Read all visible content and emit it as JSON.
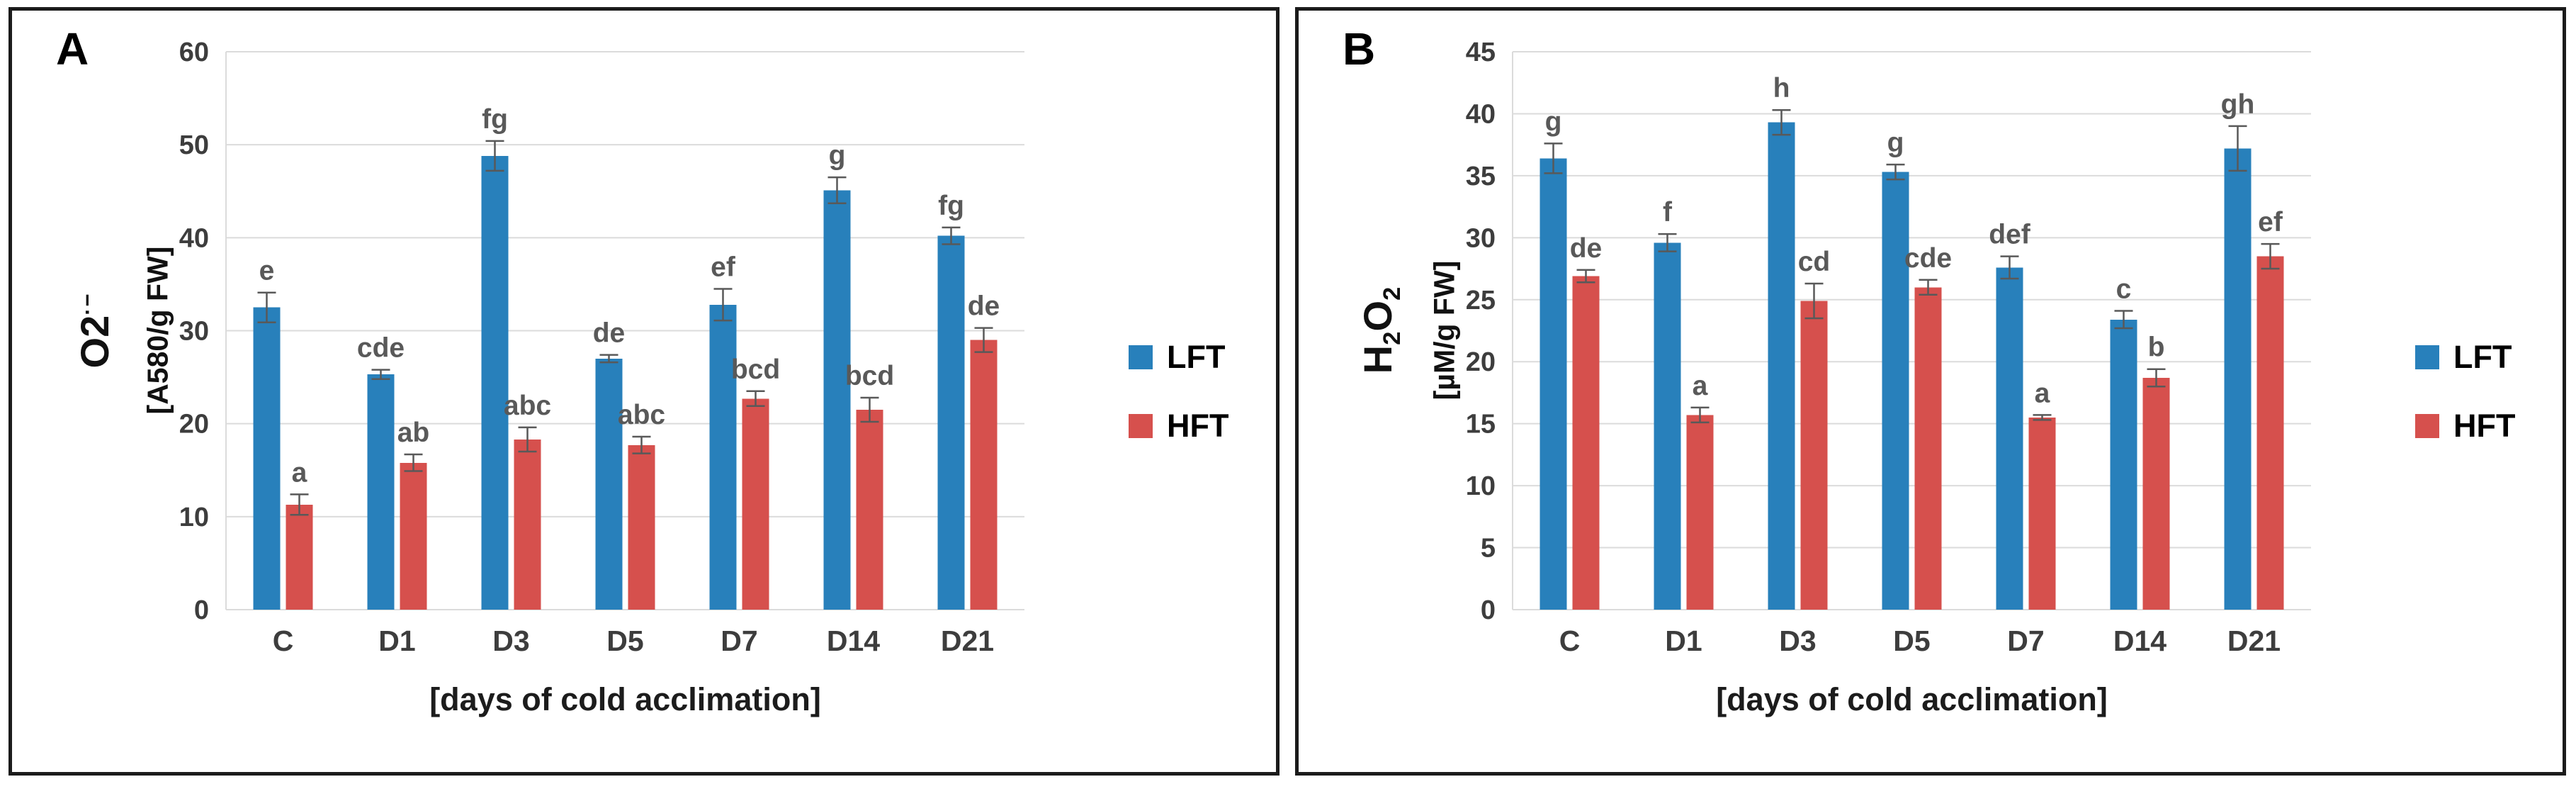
{
  "chart_data": [
    {
      "panel": "A",
      "type": "bar",
      "y_base": "O2",
      "y_sup": "·−",
      "y_unit": "[A580/g FW]",
      "xlabel": "[days of cold acclimation]",
      "categories": [
        "C",
        "D1",
        "D3",
        "D5",
        "D7",
        "D14",
        "D21"
      ],
      "ylim": [
        0,
        60
      ],
      "yticks": [
        0,
        10,
        20,
        30,
        40,
        50,
        60
      ],
      "grid": "on",
      "legend_position": "right",
      "series": [
        {
          "name": "LFT",
          "color": "#2880BB",
          "values": [
            32.5,
            25.3,
            48.8,
            27.0,
            32.8,
            45.1,
            40.2
          ],
          "errors": [
            1.6,
            0.5,
            1.6,
            0.4,
            1.7,
            1.4,
            0.9
          ],
          "letters": [
            "e",
            "cde",
            "fg",
            "de",
            "ef",
            "g",
            "fg"
          ]
        },
        {
          "name": "HFT",
          "color": "#D6504D",
          "values": [
            11.3,
            15.8,
            18.3,
            17.7,
            22.7,
            21.5,
            29.0
          ],
          "errors": [
            1.1,
            0.9,
            1.3,
            0.9,
            0.8,
            1.3,
            1.3
          ],
          "letters": [
            "a",
            "ab",
            "abc",
            "abc",
            "bcd",
            "bcd",
            "de"
          ]
        }
      ]
    },
    {
      "panel": "B",
      "type": "bar",
      "y_parts": {
        "b1": "H",
        "s1": "2",
        "b2": "O",
        "s2": "2"
      },
      "y_unit": "[µM/g FW]",
      "xlabel": "[days of cold acclimation]",
      "categories": [
        "C",
        "D1",
        "D3",
        "D5",
        "D7",
        "D14",
        "D21"
      ],
      "ylim": [
        0,
        45
      ],
      "yticks": [
        0,
        5,
        10,
        15,
        20,
        25,
        30,
        35,
        40,
        45
      ],
      "grid": "on",
      "legend_position": "right",
      "series": [
        {
          "name": "LFT",
          "color": "#2880BB",
          "values": [
            36.4,
            29.6,
            39.3,
            35.3,
            27.6,
            23.4,
            37.2
          ],
          "errors": [
            1.2,
            0.7,
            1.0,
            0.6,
            0.9,
            0.7,
            1.8
          ],
          "letters": [
            "g",
            "f",
            "h",
            "g",
            "def",
            "c",
            "gh"
          ]
        },
        {
          "name": "HFT",
          "color": "#D6504D",
          "values": [
            26.9,
            15.7,
            24.9,
            26.0,
            15.5,
            18.7,
            28.5
          ],
          "errors": [
            0.5,
            0.6,
            1.4,
            0.6,
            0.2,
            0.7,
            1.0
          ],
          "letters": [
            "de",
            "a",
            "cd",
            "cde",
            "a",
            "b",
            "ef"
          ]
        }
      ]
    }
  ],
  "style_colors": {
    "gridline": "#DBDBDB",
    "error_bar": "#595959",
    "letters": "#595959",
    "tick_text": "#3D3D3D"
  }
}
